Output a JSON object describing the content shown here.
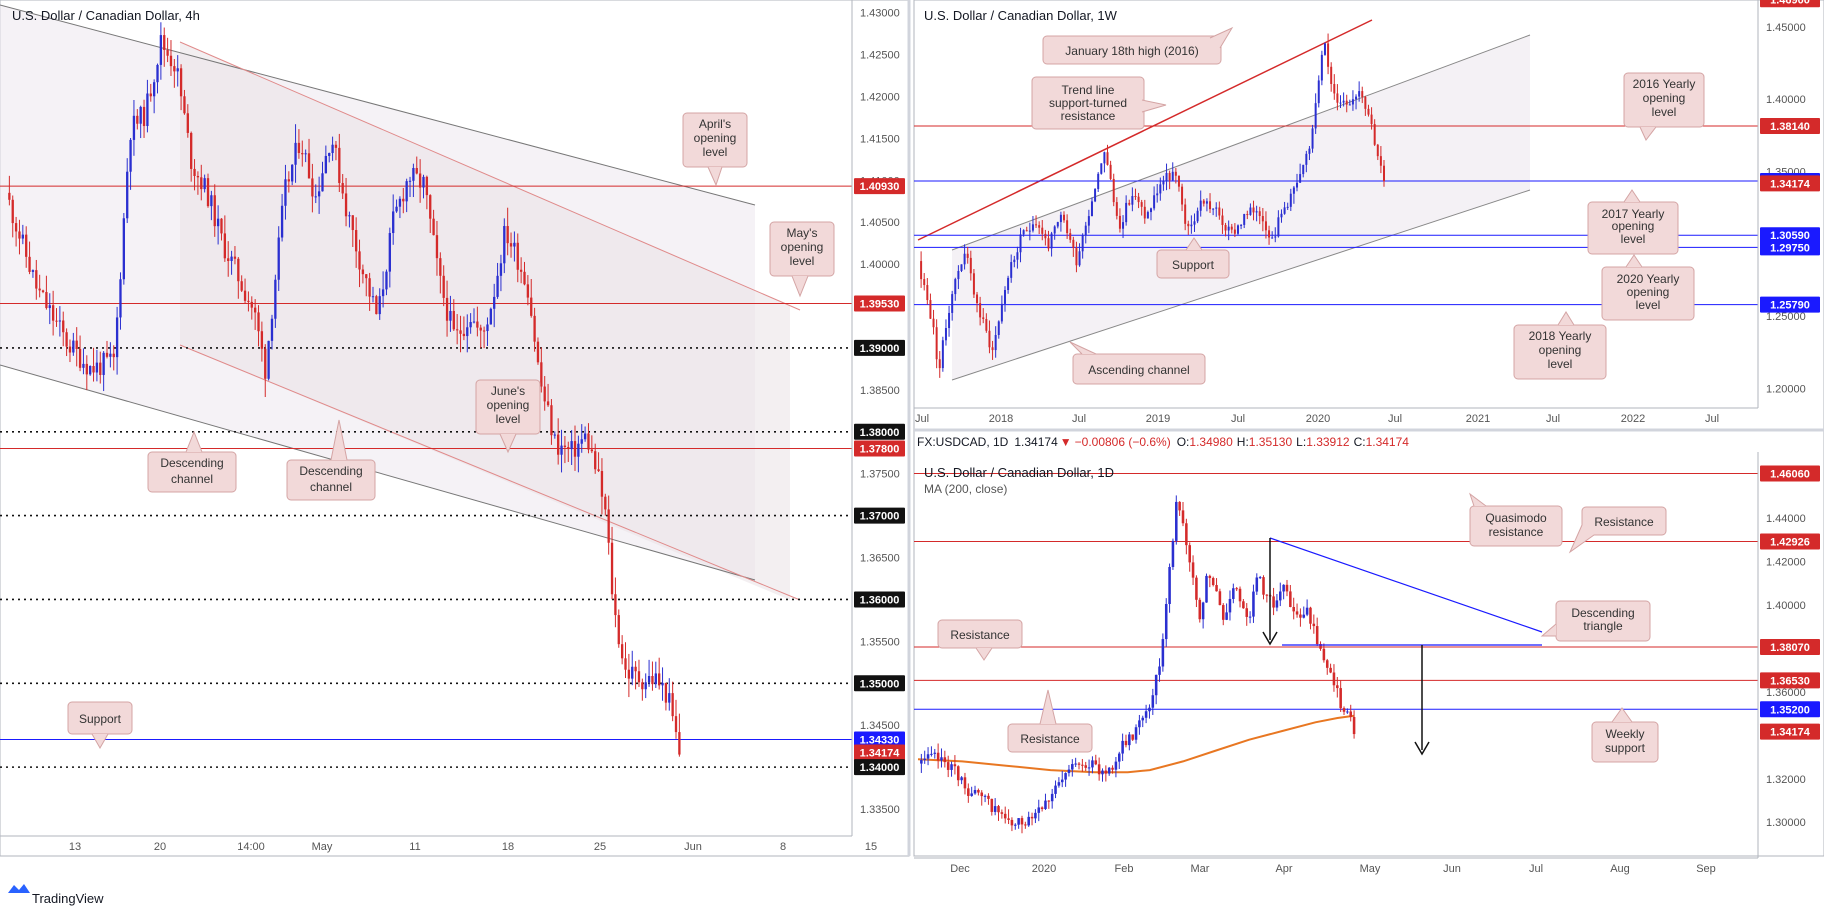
{
  "colors": {
    "up": "#2a2fd0",
    "down": "#d42a2a",
    "red_line": "#d42a2a",
    "blue_line": "#1a1aff",
    "ma_line": "#e87722",
    "callout_fill": "#f2d9d9",
    "callout_stroke": "#d4a4a4",
    "grid_border": "#b2b5be"
  },
  "footer": {
    "brand": "TradingView"
  },
  "chart_data": [
    {
      "id": "h4",
      "type": "candlestick",
      "title": "U.S. Dollar / Canadian Dollar, 4h",
      "ylim": [
        1.3325,
        1.4315
      ],
      "y_ticks": [
        "1.43000",
        "1.42500",
        "1.42000",
        "1.41500",
        "1.41000",
        "1.40500",
        "1.40000",
        "1.39500",
        "1.39000",
        "1.38500",
        "1.38000",
        "1.37500",
        "1.37000",
        "1.36500",
        "1.36000",
        "1.35500",
        "1.35000",
        "1.34500",
        "1.34000",
        "1.33500"
      ],
      "x_ticks": [
        "13",
        "20",
        "14:00",
        "May",
        "11",
        "18",
        "25",
        "Jun",
        "8",
        "15"
      ],
      "price_labels": [
        {
          "value": 1.4093,
          "text": "1.40930",
          "kind": "red"
        },
        {
          "value": 1.3953,
          "text": "1.39530",
          "kind": "red"
        },
        {
          "value": 1.39,
          "text": "1.39000",
          "kind": "black"
        },
        {
          "value": 1.38,
          "text": "1.38000",
          "kind": "black"
        },
        {
          "value": 1.378,
          "text": "1.37800",
          "kind": "red"
        },
        {
          "value": 1.37,
          "text": "1.37000",
          "kind": "black"
        },
        {
          "value": 1.36,
          "text": "1.36000",
          "kind": "black"
        },
        {
          "value": 1.35,
          "text": "1.35000",
          "kind": "black"
        },
        {
          "value": 1.3433,
          "text": "1.34330",
          "kind": "blue"
        },
        {
          "value": 1.34174,
          "text": "1.34174",
          "kind": "current"
        },
        {
          "value": 1.34,
          "text": "1.34000",
          "kind": "black"
        }
      ],
      "callouts": [
        "April's opening level",
        "May's opening level",
        "June's opening level",
        "Descending channel",
        "Descending channel",
        "Support"
      ],
      "path": [
        [
          0,
          1.4085
        ],
        [
          0.04,
          1.397
        ],
        [
          0.08,
          1.3905
        ],
        [
          0.11,
          1.3875
        ],
        [
          0.14,
          1.3885
        ],
        [
          0.16,
          1.416
        ],
        [
          0.18,
          1.418
        ],
        [
          0.2,
          1.4265
        ],
        [
          0.22,
          1.4235
        ],
        [
          0.24,
          1.412
        ],
        [
          0.26,
          1.4085
        ],
        [
          0.28,
          1.4025
        ],
        [
          0.3,
          1.3985
        ],
        [
          0.32,
          1.3945
        ],
        [
          0.335,
          1.3875
        ],
        [
          0.36,
          1.4085
        ],
        [
          0.38,
          1.415
        ],
        [
          0.4,
          1.408
        ],
        [
          0.42,
          1.4155
        ],
        [
          0.44,
          1.4065
        ],
        [
          0.46,
          1.3995
        ],
        [
          0.48,
          1.3935
        ],
        [
          0.5,
          1.405
        ],
        [
          0.52,
          1.4105
        ],
        [
          0.54,
          1.4095
        ],
        [
          0.56,
          1.398
        ],
        [
          0.58,
          1.391
        ],
        [
          0.6,
          1.394
        ],
        [
          0.615,
          1.391
        ],
        [
          0.63,
          1.3965
        ],
        [
          0.645,
          1.404
        ],
        [
          0.66,
          1.401
        ],
        [
          0.675,
          1.397
        ],
        [
          0.69,
          1.386
        ],
        [
          0.71,
          1.3785
        ],
        [
          0.73,
          1.3775
        ],
        [
          0.75,
          1.3795
        ],
        [
          0.765,
          1.3745
        ],
        [
          0.775,
          1.37
        ],
        [
          0.785,
          1.359
        ],
        [
          0.8,
          1.3515
        ],
        [
          0.82,
          1.3505
        ],
        [
          0.84,
          1.3505
        ],
        [
          0.855,
          1.3485
        ],
        [
          0.87,
          1.3417
        ]
      ]
    },
    {
      "id": "w1",
      "type": "candlestick",
      "title": "U.S. Dollar / Canadian Dollar, 1W",
      "ylim": [
        1.1885,
        1.4685
      ],
      "y_ticks": [
        "1.45000",
        "1.40000",
        "1.35000",
        "1.30000",
        "1.25000",
        "1.20000"
      ],
      "x_ticks": [
        "Jul",
        "2018",
        "Jul",
        "2019",
        "Jul",
        "2020",
        "Jul",
        "2021",
        "Jul",
        "2022",
        "Jul"
      ],
      "price_labels": [
        {
          "value": 1.469,
          "text": "1.46900",
          "kind": "red"
        },
        {
          "value": 1.3814,
          "text": "1.38140",
          "kind": "red"
        },
        {
          "value": 1.3434,
          "text": "1.34340",
          "kind": "blue"
        },
        {
          "value": 1.34174,
          "text": "1.34174",
          "kind": "current"
        },
        {
          "value": 1.3059,
          "text": "1.30590",
          "kind": "blue"
        },
        {
          "value": 1.2975,
          "text": "1.29750",
          "kind": "blue"
        },
        {
          "value": 1.2579,
          "text": "1.25790",
          "kind": "blue"
        }
      ],
      "callouts": [
        "January 18th high (2016)",
        "Trend line support-turned resistance",
        "2016 Yearly opening level",
        "2017 Yearly opening level",
        "2020 Yearly opening level",
        "2018 Yearly opening level",
        "Support",
        "Ascending channel"
      ],
      "path": [
        [
          0,
          1.288
        ],
        [
          0.03,
          1.247
        ],
        [
          0.045,
          1.212
        ],
        [
          0.07,
          1.263
        ],
        [
          0.1,
          1.296
        ],
        [
          0.13,
          1.254
        ],
        [
          0.16,
          1.226
        ],
        [
          0.19,
          1.275
        ],
        [
          0.22,
          1.302
        ],
        [
          0.25,
          1.318
        ],
        [
          0.28,
          1.299
        ],
        [
          0.31,
          1.319
        ],
        [
          0.34,
          1.289
        ],
        [
          0.37,
          1.327
        ],
        [
          0.4,
          1.366
        ],
        [
          0.43,
          1.312
        ],
        [
          0.46,
          1.334
        ],
        [
          0.49,
          1.318
        ],
        [
          0.52,
          1.342
        ],
        [
          0.55,
          1.349
        ],
        [
          0.58,
          1.308
        ],
        [
          0.61,
          1.331
        ],
        [
          0.64,
          1.322
        ],
        [
          0.67,
          1.306
        ],
        [
          0.7,
          1.318
        ],
        [
          0.73,
          1.325
        ],
        [
          0.76,
          1.304
        ],
        [
          0.79,
          1.328
        ],
        [
          0.82,
          1.345
        ],
        [
          0.84,
          1.365
        ],
        [
          0.87,
          1.443
        ],
        [
          0.89,
          1.402
        ],
        [
          0.92,
          1.398
        ],
        [
          0.95,
          1.408
        ],
        [
          0.97,
          1.387
        ],
        [
          1.0,
          1.3417
        ]
      ]
    },
    {
      "id": "d1",
      "type": "candlestick",
      "title": "U.S. Dollar / Canadian Dollar, 1D",
      "subtitle": "MA (200, close)",
      "header": {
        "symbol": "FX:USDCAD, 1D",
        "last": "1.34174",
        "change": "−0.00806 (−0.6%)",
        "o": "1.34980",
        "h": "1.35130",
        "l": "1.33912",
        "c": "1.34174"
      },
      "ylim": [
        1.2895,
        1.4705
      ],
      "y_ticks": [
        "1.44000",
        "1.42000",
        "1.40000",
        "1.38000",
        "1.36000",
        "1.34000",
        "1.32000",
        "1.30000"
      ],
      "x_ticks": [
        "Dec",
        "2020",
        "Feb",
        "Mar",
        "Apr",
        "May",
        "Jun",
        "Jul",
        "Aug",
        "Sep"
      ],
      "price_labels": [
        {
          "value": 1.4606,
          "text": "1.46060",
          "kind": "red"
        },
        {
          "value": 1.42926,
          "text": "1.42926",
          "kind": "red"
        },
        {
          "value": 1.3807,
          "text": "1.38070",
          "kind": "red"
        },
        {
          "value": 1.3653,
          "text": "1.36530",
          "kind": "red"
        },
        {
          "value": 1.352,
          "text": "1.35200",
          "kind": "blue"
        },
        {
          "value": 1.34174,
          "text": "1.34174",
          "kind": "current"
        }
      ],
      "callouts": [
        "Quasimodo resistance",
        "Resistance",
        "Resistance",
        "Resistance",
        "Descending triangle",
        "Weekly support"
      ],
      "path": [
        [
          0,
          1.327
        ],
        [
          0.03,
          1.33
        ],
        [
          0.06,
          1.326
        ],
        [
          0.09,
          1.315
        ],
        [
          0.12,
          1.31
        ],
        [
          0.15,
          1.304
        ],
        [
          0.17,
          1.298
        ],
        [
          0.19,
          1.3
        ],
        [
          0.21,
          1.305
        ],
        [
          0.23,
          1.31
        ],
        [
          0.25,
          1.315
        ],
        [
          0.27,
          1.322
        ],
        [
          0.29,
          1.329
        ],
        [
          0.31,
          1.327
        ],
        [
          0.33,
          1.323
        ],
        [
          0.35,
          1.325
        ],
        [
          0.37,
          1.335
        ],
        [
          0.39,
          1.34
        ],
        [
          0.4,
          1.347
        ],
        [
          0.42,
          1.355
        ],
        [
          0.44,
          1.375
        ],
        [
          0.455,
          1.417
        ],
        [
          0.47,
          1.45
        ],
        [
          0.485,
          1.432
        ],
        [
          0.5,
          1.408
        ],
        [
          0.51,
          1.39
        ],
        [
          0.525,
          1.416
        ],
        [
          0.54,
          1.405
        ],
        [
          0.555,
          1.392
        ],
        [
          0.57,
          1.41
        ],
        [
          0.585,
          1.402
        ],
        [
          0.6,
          1.395
        ],
        [
          0.615,
          1.414
        ],
        [
          0.63,
          1.405
        ],
        [
          0.645,
          1.4
        ],
        [
          0.66,
          1.41
        ],
        [
          0.675,
          1.399
        ],
        [
          0.69,
          1.392
        ],
        [
          0.705,
          1.4
        ],
        [
          0.72,
          1.385
        ],
        [
          0.735,
          1.373
        ],
        [
          0.75,
          1.368
        ],
        [
          0.765,
          1.355
        ],
        [
          0.78,
          1.349
        ],
        [
          0.79,
          1.3417
        ]
      ],
      "ma_path": [
        [
          0,
          1.329
        ],
        [
          0.08,
          1.328
        ],
        [
          0.16,
          1.326
        ],
        [
          0.24,
          1.324
        ],
        [
          0.32,
          1.323
        ],
        [
          0.38,
          1.323
        ],
        [
          0.42,
          1.324
        ],
        [
          0.48,
          1.328
        ],
        [
          0.54,
          1.333
        ],
        [
          0.6,
          1.338
        ],
        [
          0.66,
          1.342
        ],
        [
          0.72,
          1.346
        ],
        [
          0.76,
          1.348
        ],
        [
          0.79,
          1.349
        ]
      ]
    }
  ]
}
